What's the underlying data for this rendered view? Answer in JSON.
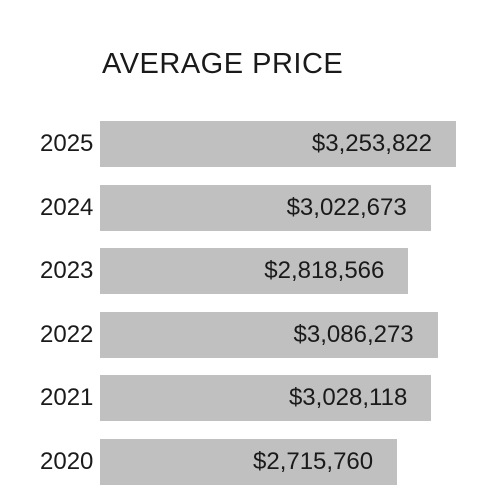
{
  "chart_data": {
    "type": "bar",
    "orientation": "horizontal",
    "title": "AVERAGE PRICE",
    "xlabel": "",
    "ylabel": "",
    "grid": false,
    "categories": [
      "2025",
      "2024",
      "2023",
      "2022",
      "2021",
      "2020"
    ],
    "values": [
      3253822,
      3022673,
      2818566,
      3086273,
      3028118,
      2715760
    ],
    "value_labels": [
      "$3,253,822",
      "$3,022,673",
      "$2,818,566",
      "$3,086,273",
      "$3,028,118",
      "$2,715,760"
    ],
    "bar_color": "#c0c0c0",
    "text_color": "#1a1a1a"
  }
}
